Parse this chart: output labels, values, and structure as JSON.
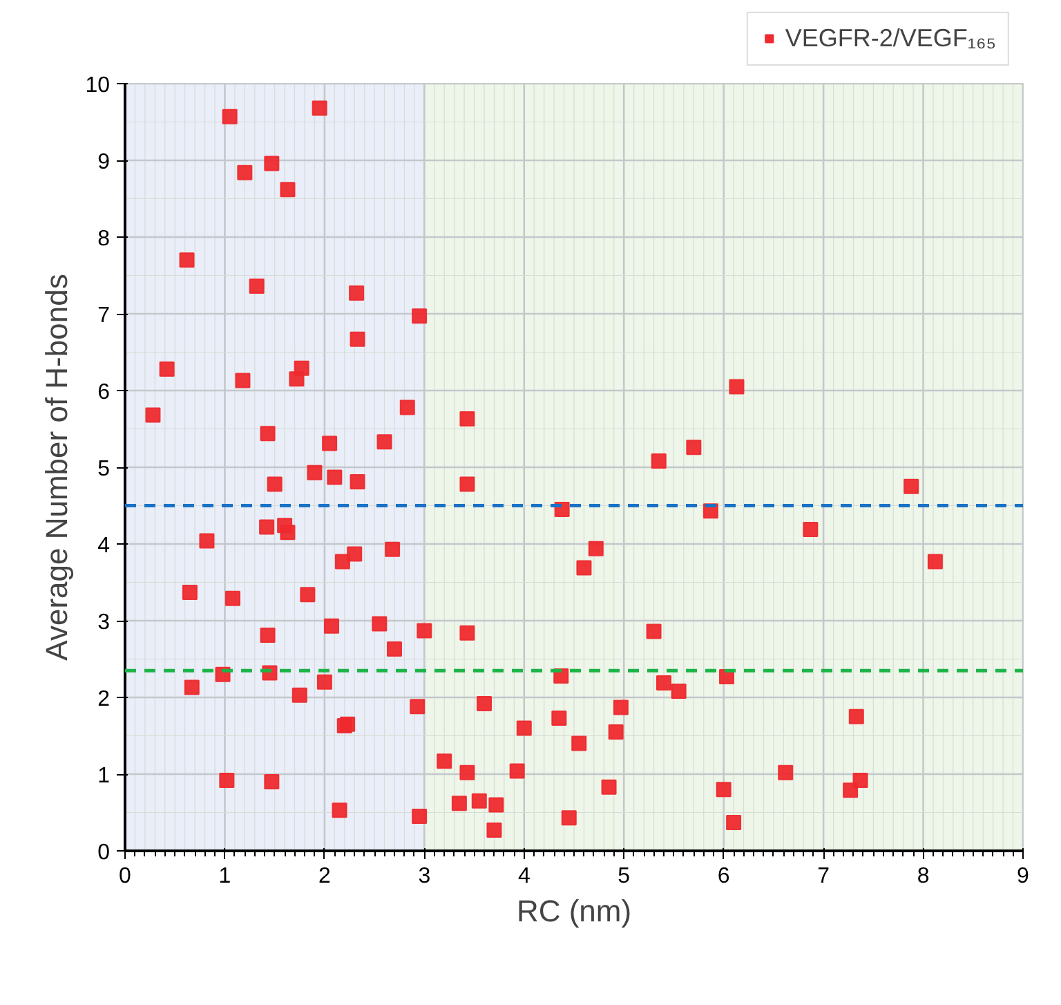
{
  "chart_data": {
    "type": "scatter",
    "xlabel": "RC (nm)",
    "ylabel": "Average Number of H-bonds",
    "xlim": [
      0,
      9
    ],
    "ylim": [
      0,
      10
    ],
    "xticks": [
      0,
      1,
      2,
      3,
      4,
      5,
      6,
      7,
      8,
      9
    ],
    "yticks": [
      0,
      1,
      2,
      3,
      4,
      5,
      6,
      7,
      8,
      9,
      10
    ],
    "grid": true,
    "legend": "top right",
    "marker": "square",
    "bands": [
      {
        "axis": "x",
        "from": 0,
        "to": 3,
        "color": "#e9eef8"
      },
      {
        "axis": "x",
        "from": 3,
        "to": 9,
        "color": "#eef6e9"
      }
    ],
    "ref_lines": [
      {
        "axis": "y",
        "value": 4.5,
        "color": "#1a72c6",
        "line_style": "dashed"
      },
      {
        "axis": "y",
        "value": 2.35,
        "color": "#1db447",
        "line_style": "dashed"
      }
    ],
    "series": [
      {
        "name": "VEGFR-2/VEGF₁₆₅",
        "color": "#ee2a2e",
        "x": [
          0.28,
          0.42,
          0.62,
          0.65,
          0.67,
          0.82,
          0.98,
          1.02,
          1.05,
          1.08,
          1.18,
          1.2,
          1.32,
          1.42,
          1.43,
          1.43,
          1.45,
          1.47,
          1.47,
          1.5,
          1.6,
          1.63,
          1.63,
          1.72,
          1.75,
          1.77,
          1.83,
          1.9,
          1.95,
          2.0,
          2.05,
          2.07,
          2.1,
          2.15,
          2.18,
          2.2,
          2.23,
          2.3,
          2.32,
          2.33,
          2.33,
          2.55,
          2.6,
          2.68,
          2.7,
          2.83,
          2.93,
          2.95,
          2.95,
          3.0,
          3.2,
          3.35,
          3.43,
          3.43,
          3.43,
          3.43,
          3.55,
          3.6,
          3.7,
          3.72,
          3.93,
          4.0,
          4.35,
          4.37,
          4.38,
          4.45,
          4.55,
          4.6,
          4.72,
          4.85,
          4.92,
          4.97,
          5.3,
          5.35,
          5.4,
          5.55,
          5.7,
          5.87,
          6.0,
          6.03,
          6.1,
          6.13,
          6.62,
          6.87,
          7.27,
          7.33,
          7.37,
          7.88,
          8.12
        ],
        "values": [
          5.68,
          6.28,
          7.7,
          3.37,
          2.13,
          4.04,
          2.3,
          0.92,
          9.57,
          3.29,
          6.13,
          8.84,
          7.36,
          4.22,
          5.44,
          2.81,
          2.32,
          8.96,
          0.9,
          4.78,
          4.24,
          8.62,
          4.15,
          6.15,
          2.03,
          6.29,
          3.34,
          4.93,
          9.68,
          2.2,
          5.31,
          2.93,
          4.87,
          0.53,
          3.77,
          1.63,
          1.65,
          3.87,
          7.27,
          6.67,
          4.81,
          2.96,
          5.33,
          3.93,
          2.63,
          5.78,
          1.88,
          6.97,
          0.45,
          2.87,
          1.17,
          0.62,
          5.63,
          4.78,
          2.84,
          1.02,
          0.65,
          1.92,
          0.27,
          0.6,
          1.04,
          1.6,
          1.73,
          2.28,
          4.45,
          0.43,
          1.4,
          3.69,
          3.94,
          0.83,
          1.55,
          1.87,
          2.86,
          5.08,
          2.19,
          2.08,
          5.26,
          4.43,
          0.8,
          2.27,
          0.37,
          6.05,
          1.02,
          4.19,
          0.79,
          1.75,
          0.92,
          4.75,
          3.77
        ]
      }
    ]
  }
}
